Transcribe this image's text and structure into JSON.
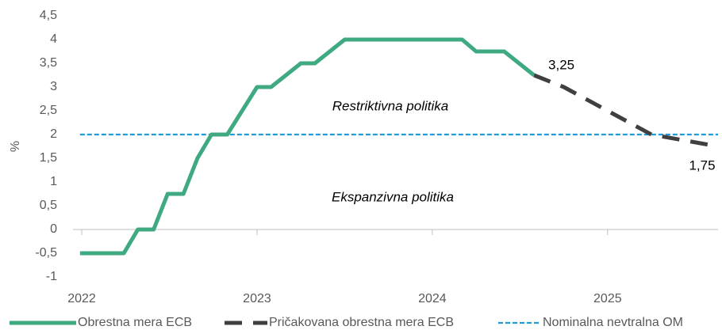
{
  "chart_data": {
    "type": "line",
    "y_label": "%",
    "annotations": [
      "Restriktivna politika",
      "Ekspanzivna politika"
    ],
    "ylim": [
      -1,
      4.5
    ],
    "yticks": [
      -1,
      {
        "value": -0.5,
        "label": "-0,5"
      },
      0,
      {
        "value": 0.5,
        "label": "0,5"
      },
      1,
      {
        "value": 1.5,
        "label": "1,5"
      },
      2,
      {
        "value": 2.5,
        "label": "2,5"
      },
      3,
      {
        "value": 3.5,
        "label": "3,5"
      },
      4,
      {
        "value": 4.5,
        "label": "4,5"
      }
    ],
    "xlim": [
      2021.95,
      2025.63
    ],
    "xticks": [
      2022,
      2023,
      2024,
      2025
    ],
    "series": [
      {
        "name": "Obrestna mera ECB",
        "color": "#3faa82",
        "style": "solid",
        "x": [
          2021.99,
          2022.24,
          2022.32,
          2022.41,
          2022.49,
          2022.58,
          2022.66,
          2022.74,
          2022.83,
          2023.0,
          2023.08,
          2023.25,
          2023.33,
          2023.5,
          2024.17,
          2024.25,
          2024.41,
          2024.58
        ],
        "values": [
          -0.5,
          -0.5,
          0,
          0,
          0.75,
          0.75,
          1.5,
          2,
          2,
          3,
          3,
          3.5,
          3.5,
          4,
          4,
          3.75,
          3.75,
          3.25
        ]
      },
      {
        "name": "Pričakovana obrestna mera ECB",
        "color": "#404040",
        "style": "dash",
        "x": [
          2024.58,
          2024.75,
          2025.0,
          2025.25,
          2025.63
        ],
        "values": [
          3.25,
          3.0,
          2.5,
          2.0,
          1.75
        ],
        "value_labels": [
          "3,25",
          null,
          null,
          null,
          "1,75"
        ]
      },
      {
        "name": "Nominalna nevtralna OM",
        "color": "#1f9bd7",
        "style": "dot",
        "x": [
          2021.99,
          2025.63
        ],
        "values": [
          2,
          2
        ]
      }
    ]
  }
}
